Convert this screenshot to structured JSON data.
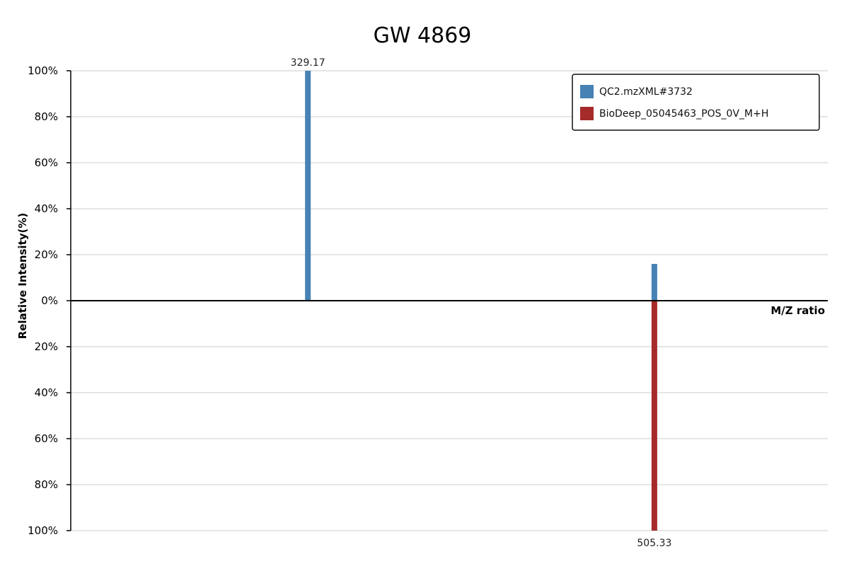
{
  "chart_data": {
    "type": "bar",
    "subtype": "mirror-spectrum",
    "title": "GW 4869",
    "xlabel": "M/Z ratio",
    "ylabel": "Relative Intensity(%)",
    "ylim": [
      -100,
      100
    ],
    "y_ticks": [
      "100%",
      "80%",
      "60%",
      "40%",
      "20%",
      "0%",
      "20%",
      "40%",
      "60%",
      "80%",
      "100%"
    ],
    "grid": true,
    "legend_position": "top-right",
    "series": [
      {
        "name": "QC2.mzXML#3732",
        "color": "#4682b4",
        "direction": "up",
        "peaks": [
          {
            "mz": 329.17,
            "intensity": 100,
            "label": "329.17"
          },
          {
            "mz": 505.33,
            "intensity": 16
          }
        ]
      },
      {
        "name": "BioDeep_05045463_POS_0V_M+H",
        "color": "#a52a2a",
        "direction": "down",
        "peaks": [
          {
            "mz": 505.33,
            "intensity": 100,
            "label": "505.33"
          }
        ]
      }
    ]
  }
}
